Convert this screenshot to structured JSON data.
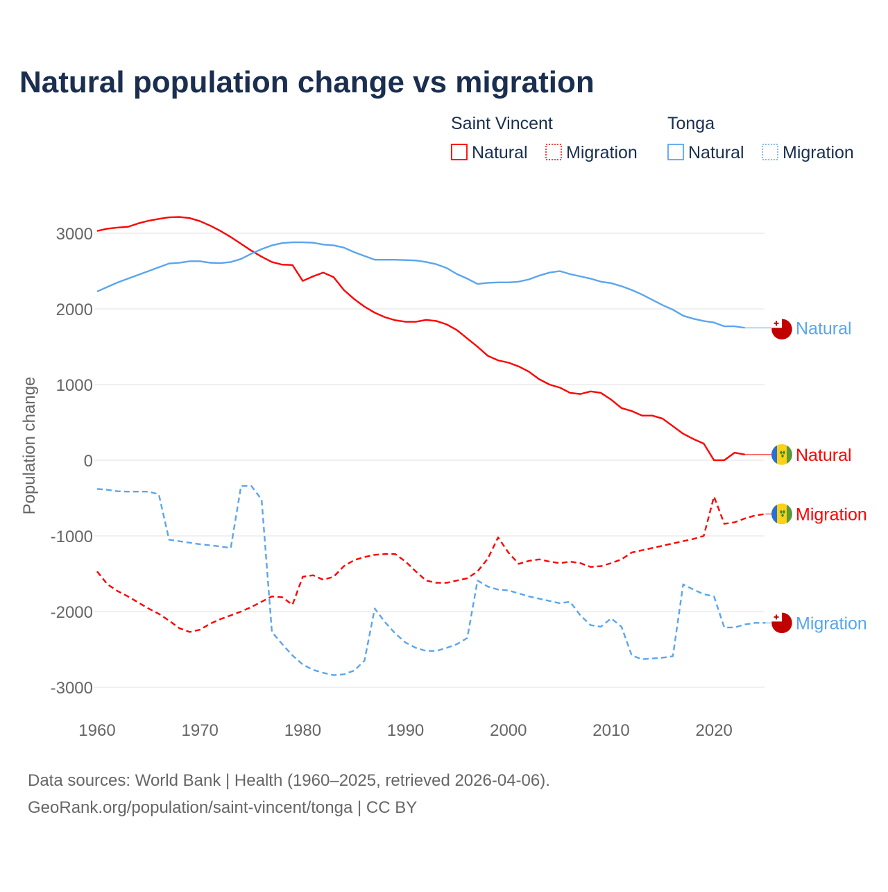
{
  "chart_data": {
    "type": "line",
    "title": "Natural population change vs migration",
    "ylabel": "Population change",
    "xlabel": "",
    "ylim": [
      -3300,
      3300
    ],
    "xlim": [
      1960,
      2025
    ],
    "yticks": [
      "3000",
      "2000",
      "1000",
      "0",
      "-1000",
      "-2000",
      "-3000"
    ],
    "ytick_values": [
      3000,
      2000,
      1000,
      0,
      -1000,
      -2000,
      -3000
    ],
    "xticks": [
      "1960",
      "1970",
      "1980",
      "1990",
      "2000",
      "2010",
      "2020"
    ],
    "xtick_values": [
      1960,
      1970,
      1980,
      1990,
      2000,
      2010,
      2020
    ],
    "grid": true,
    "legend": {
      "placement": "top-right",
      "groups": [
        {
          "name": "Saint Vincent",
          "items": [
            "Natural",
            "Migration"
          ]
        },
        {
          "name": "Tonga",
          "items": [
            "Natural",
            "Migration"
          ]
        }
      ]
    },
    "x_start": 1960,
    "series": [
      {
        "name": "Saint Vincent Natural",
        "country": "Saint Vincent",
        "label": "Natural",
        "color": "#ff0000",
        "dash": false,
        "flag": "svg",
        "values": [
          3030,
          3060,
          3075,
          3085,
          3130,
          3165,
          3190,
          3210,
          3215,
          3200,
          3160,
          3100,
          3030,
          2950,
          2860,
          2770,
          2690,
          2620,
          2585,
          2580,
          2370,
          2430,
          2480,
          2420,
          2250,
          2130,
          2030,
          1950,
          1890,
          1850,
          1830,
          1830,
          1855,
          1840,
          1795,
          1720,
          1610,
          1500,
          1380,
          1320,
          1290,
          1240,
          1170,
          1070,
          1000,
          960,
          890,
          875,
          910,
          890,
          800,
          690,
          650,
          590,
          590,
          550,
          450,
          350,
          280,
          220,
          0,
          0,
          100,
          75
        ]
      },
      {
        "name": "Saint Vincent Migration",
        "country": "Saint Vincent",
        "label": "Migration",
        "color": "#ff0000",
        "dash": true,
        "flag": "svg",
        "values": [
          -1470,
          -1640,
          -1730,
          -1800,
          -1880,
          -1960,
          -2030,
          -2120,
          -2220,
          -2270,
          -2240,
          -2160,
          -2100,
          -2050,
          -2000,
          -1940,
          -1870,
          -1800,
          -1810,
          -1910,
          -1540,
          -1520,
          -1580,
          -1540,
          -1400,
          -1320,
          -1280,
          -1250,
          -1240,
          -1240,
          -1340,
          -1470,
          -1590,
          -1620,
          -1620,
          -1590,
          -1560,
          -1470,
          -1300,
          -1020,
          -1220,
          -1370,
          -1330,
          -1310,
          -1340,
          -1360,
          -1340,
          -1360,
          -1410,
          -1400,
          -1360,
          -1310,
          -1220,
          -1190,
          -1160,
          -1130,
          -1100,
          -1070,
          -1040,
          -1000,
          -480,
          -840,
          -820,
          -770,
          -730,
          -710
        ]
      },
      {
        "name": "Tonga Natural",
        "country": "Tonga",
        "label": "Natural",
        "color": "#5aa5ee",
        "dash": false,
        "flag": "tonga",
        "values": [
          2230,
          2290,
          2350,
          2400,
          2450,
          2500,
          2550,
          2600,
          2610,
          2630,
          2630,
          2610,
          2605,
          2620,
          2660,
          2730,
          2790,
          2840,
          2870,
          2880,
          2880,
          2875,
          2850,
          2840,
          2810,
          2750,
          2700,
          2650,
          2650,
          2650,
          2645,
          2640,
          2620,
          2590,
          2540,
          2460,
          2400,
          2330,
          2345,
          2350,
          2350,
          2360,
          2390,
          2440,
          2480,
          2500,
          2460,
          2430,
          2400,
          2360,
          2340,
          2300,
          2250,
          2190,
          2120,
          2050,
          1990,
          1910,
          1870,
          1840,
          1820,
          1770,
          1770,
          1750
        ]
      },
      {
        "name": "Tonga Migration",
        "country": "Tonga",
        "label": "Migration",
        "color": "#5aa5ee",
        "dash": true,
        "flag": "tonga",
        "values": [
          -380,
          -390,
          -410,
          -415,
          -415,
          -415,
          -450,
          -1050,
          -1070,
          -1090,
          -1110,
          -1125,
          -1140,
          -1160,
          -340,
          -340,
          -520,
          -2270,
          -2430,
          -2580,
          -2700,
          -2770,
          -2810,
          -2840,
          -2830,
          -2780,
          -2650,
          -1960,
          -2140,
          -2290,
          -2410,
          -2480,
          -2520,
          -2520,
          -2480,
          -2430,
          -2350,
          -1590,
          -1670,
          -1710,
          -1720,
          -1760,
          -1800,
          -1830,
          -1860,
          -1890,
          -1870,
          -2050,
          -2180,
          -2200,
          -2090,
          -2200,
          -2580,
          -2630,
          -2620,
          -2610,
          -2590,
          -1640,
          -1710,
          -1770,
          -1800,
          -2210,
          -2210,
          -2170,
          -2150,
          -2150
        ]
      }
    ]
  },
  "footer": {
    "line1": "Data sources: World Bank | Health (1960–2025, retrieved 2026-04-06).",
    "line2": "GeoRank.org/population/saint-vincent/tonga | CC BY"
  },
  "colors": {
    "title": "#1a2e4f",
    "text": "#666666",
    "grid": "#e6e6e6"
  }
}
